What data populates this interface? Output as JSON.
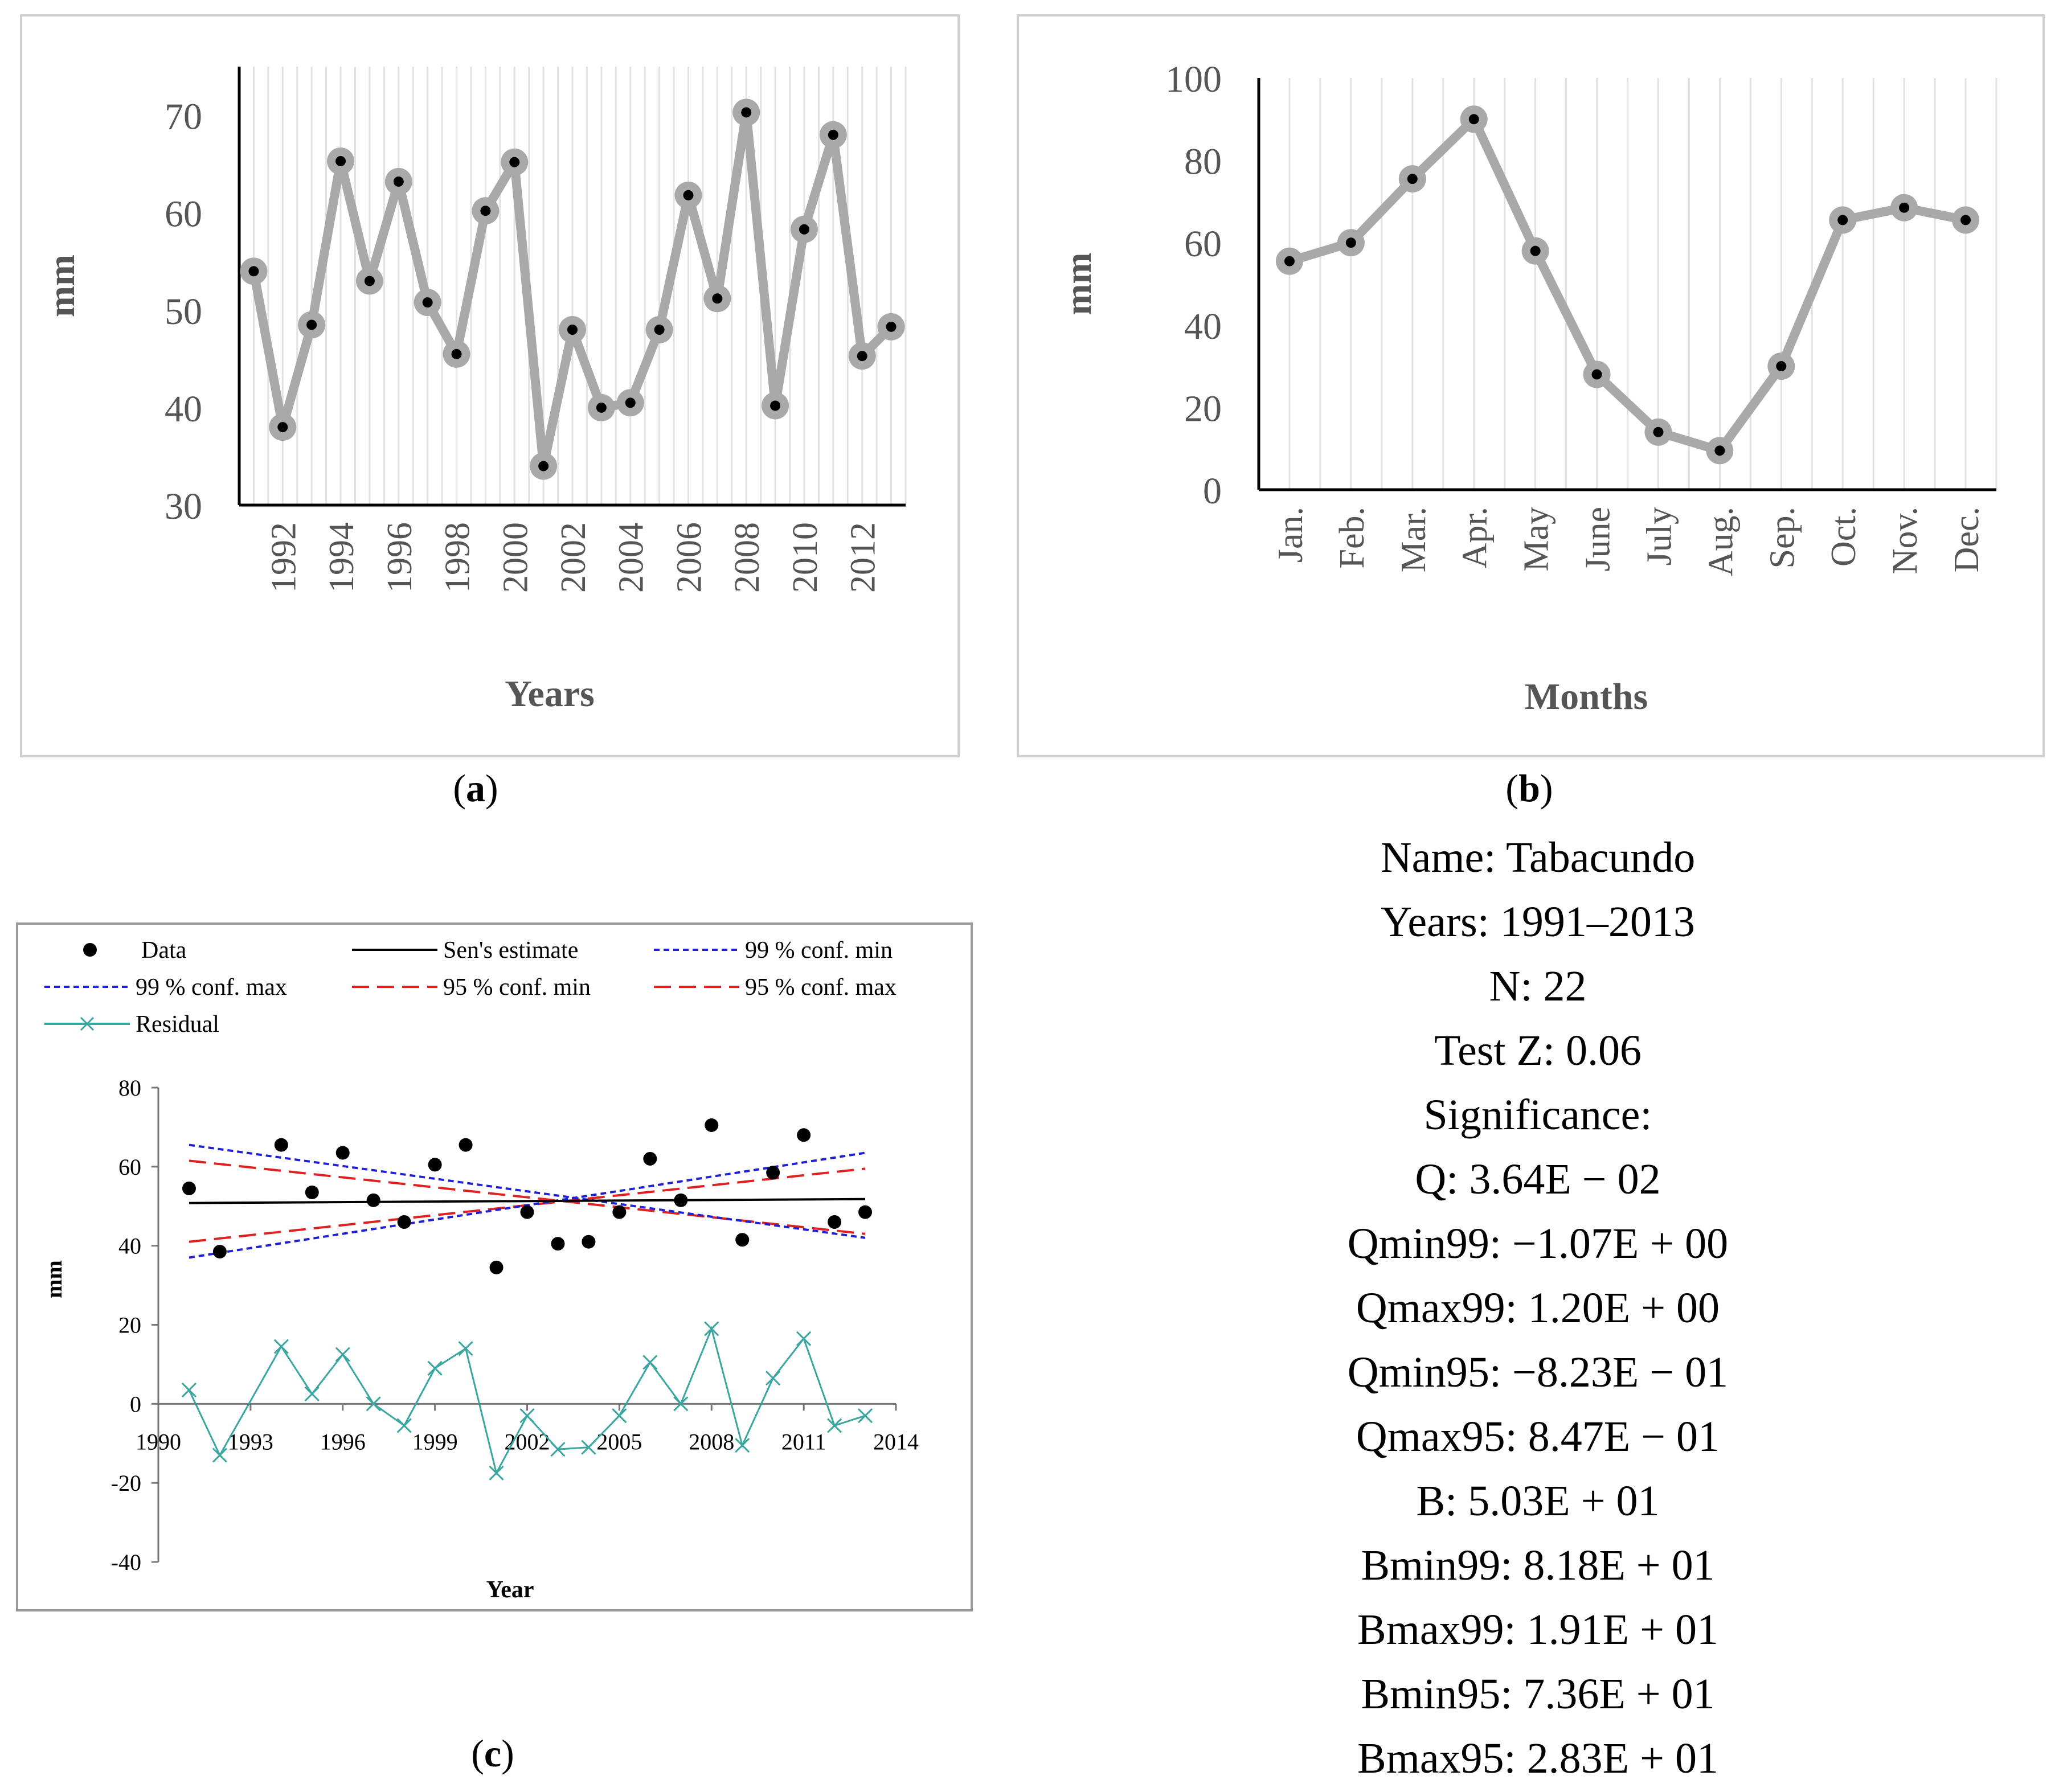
{
  "chart_data": [
    {
      "id": "a",
      "type": "line",
      "xlabel": "Years",
      "ylabel": "mm",
      "ylim": [
        30,
        75
      ],
      "yticks": [
        30,
        40,
        50,
        60,
        70
      ],
      "xtick_labels": [
        "1992",
        "1994",
        "1996",
        "1998",
        "2000",
        "2002",
        "2004",
        "2006",
        "2008",
        "2010",
        "2012"
      ],
      "x": [
        1991,
        1992,
        1993,
        1994,
        1995,
        1996,
        1997,
        1998,
        1999,
        2000,
        2001,
        2002,
        2003,
        2004,
        2005,
        2006,
        2007,
        2008,
        2009,
        2010,
        2011,
        2012,
        2013
      ],
      "values": [
        54.0,
        38.0,
        48.5,
        65.3,
        53.0,
        63.2,
        50.8,
        45.5,
        60.2,
        65.2,
        34.0,
        48.0,
        40.0,
        40.5,
        48.0,
        61.8,
        51.2,
        70.3,
        40.2,
        58.3,
        68.0,
        45.3,
        48.3
      ],
      "grid": "vertical"
    },
    {
      "id": "b",
      "type": "line",
      "xlabel": "Months",
      "ylabel": "mm",
      "ylim": [
        0,
        100
      ],
      "yticks": [
        0,
        20,
        40,
        60,
        80,
        100
      ],
      "categories": [
        "Jan.",
        "Feb.",
        "Mar.",
        "Apr.",
        "May",
        "June",
        "July",
        "Aug.",
        "Sep.",
        "Oct.",
        "Nov.",
        "Dec."
      ],
      "values": [
        55.5,
        60,
        75.5,
        90,
        58,
        28,
        14,
        9.5,
        30,
        65.5,
        68.5,
        65.5
      ],
      "grid": "vertical"
    },
    {
      "id": "c",
      "type": "scatter",
      "xlabel": "Year",
      "ylabel": "mm",
      "xlim": [
        1990,
        2014
      ],
      "ylim": [
        -40,
        80
      ],
      "xticks": [
        1990,
        1993,
        1996,
        1999,
        2002,
        2005,
        2008,
        2011,
        2014
      ],
      "yticks": [
        -40,
        -20,
        0,
        20,
        40,
        60,
        80
      ],
      "legend": [
        "Data",
        "Sen's estimate",
        "99 % conf. min",
        "99 % conf. max",
        "95 % conf. min",
        "95 % conf. max",
        "Residual"
      ],
      "colors": {
        "data": "#000000",
        "sen": "#000000",
        "conf99": "#1f1fd6",
        "conf95": "#e02020",
        "residual": "#3aa6a0"
      },
      "data_x": [
        1991,
        1992,
        1994,
        1995,
        1996,
        1997,
        1998,
        1999,
        2000,
        2001,
        2002,
        2003,
        2004,
        2005,
        2006,
        2007,
        2008,
        2009,
        2010,
        2011,
        2012,
        2013
      ],
      "data_y": [
        54.5,
        38.5,
        65.5,
        53.5,
        63.5,
        51.5,
        46,
        60.5,
        65.5,
        34.5,
        48.5,
        40.5,
        41,
        48.5,
        62,
        51.5,
        70.5,
        41.5,
        58.5,
        68,
        46,
        48.5
      ],
      "residual_y": [
        3.5,
        -13,
        14.5,
        2.5,
        12.5,
        0,
        -5.5,
        9,
        14,
        -17.5,
        -3,
        -11.5,
        -11,
        -3,
        10.5,
        0,
        19,
        -10.5,
        6.5,
        16.5,
        -5.5,
        -3
      ],
      "sen": [
        [
          1991,
          50.8
        ],
        [
          2013,
          51.8
        ]
      ],
      "conf99_min": [
        [
          1991,
          65.5
        ],
        [
          2013,
          42
        ]
      ],
      "conf99_max": [
        [
          1991,
          37
        ],
        [
          2013,
          63.5
        ]
      ],
      "conf95_min": [
        [
          1991,
          41
        ],
        [
          2013,
          59.5
        ]
      ],
      "conf95_max": [
        [
          1991,
          61.5
        ],
        [
          2013,
          43
        ]
      ]
    }
  ],
  "captions": {
    "a": "a",
    "b": "b",
    "c": "c"
  },
  "stats": [
    "Name: Tabacundo",
    "Years: 1991–2013",
    "N: 22",
    "Test Z: 0.06",
    "Significance:",
    "Q: 3.64E − 02",
    "Qmin99: −1.07E + 00",
    "Qmax99: 1.20E + 00",
    "Qmin95: −8.23E − 01",
    "Qmax95: 8.47E − 01",
    "B: 5.03E + 01",
    "Bmin99: 8.18E + 01",
    "Bmax99: 1.91E + 01",
    "Bmin95: 7.36E + 01",
    "Bmax95: 2.83E + 01"
  ]
}
